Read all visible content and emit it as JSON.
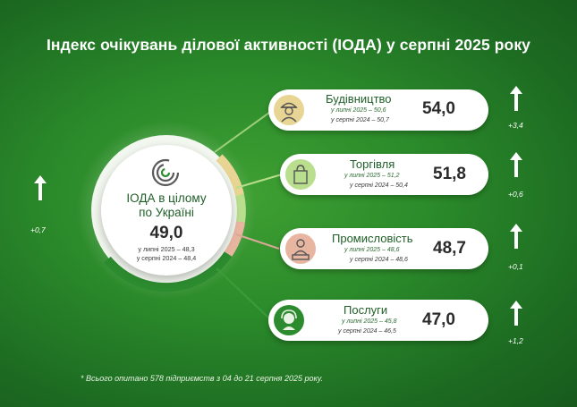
{
  "title": "Індекс очікувань ділової активності (ІОДА) у серпні 2025 року",
  "main": {
    "label_line1": "ІОДА в цілому",
    "label_line2": "по Україні",
    "value": "49,0",
    "prev_month": "у липні 2025 – 48,3",
    "prev_year": "у серпні 2024 – 48,4",
    "delta": "+0,7"
  },
  "sectors": [
    {
      "name": "Будівництво",
      "prev_month": "у липні 2025 – 50,6",
      "prev_year": "у серпні 2024 – 50,7",
      "value": "54,0",
      "delta": "+3,4",
      "icon": "construction-worker-icon"
    },
    {
      "name": "Торгівля",
      "prev_month": "у липні 2025 – 51,2",
      "prev_year": "у серпні 2024 – 50,4",
      "value": "51,8",
      "delta": "+0,6",
      "icon": "shopping-bag-icon"
    },
    {
      "name": "Промисловість",
      "prev_month": "у липні 2025 – 48,6",
      "prev_year": "у серпні 2024 – 48,6",
      "value": "48,7",
      "delta": "+0,1",
      "icon": "industrial-worker-icon"
    },
    {
      "name": "Послуги",
      "prev_month": "у липні 2025 – 45,8",
      "prev_year": "у серпні 2024 – 46,5",
      "value": "47,0",
      "delta": "+1,2",
      "icon": "headset-operator-icon"
    }
  ],
  "footnote": "* Всього опитано 578 підприємств з 04 до 21 серпня 2025 року.",
  "colors": {
    "background": "#2b8a2a",
    "construction": "#e3c66a",
    "trade": "#9fcf6b",
    "industry": "#e3a48d",
    "services": "#2d8b2f",
    "text_dark_green": "#1f5f28"
  }
}
